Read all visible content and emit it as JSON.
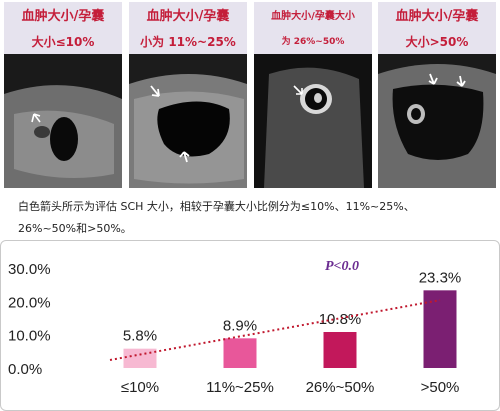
{
  "panels": [
    {
      "title": "血肿大小/孕囊",
      "subtitle": "大小≤10%"
    },
    {
      "title": "血肿大小/孕囊",
      "subtitle": "小为 11%~25%"
    },
    {
      "title": "血肿大小/孕囊大小",
      "subtitle": "为 26%~50%"
    },
    {
      "title": "血肿大小/孕囊",
      "subtitle": "大小>50%"
    }
  ],
  "caption": {
    "line1": "白色箭头所示为评估 SCH 大小，相较于孕囊大小比例分为≤10%、11%~25%、",
    "line2": "26%~50%和>50%。"
  },
  "chart_data": {
    "type": "bar",
    "categories": [
      "≤10%",
      "11%~25%",
      "26%~50%",
      ">50%"
    ],
    "values": [
      5.8,
      8.9,
      10.8,
      23.3
    ],
    "value_labels": [
      "5.8%",
      "8.9%",
      "10.8%",
      "23.3%"
    ],
    "yticks": [
      "0.0%",
      "10.0%",
      "20.0%",
      "30.0%"
    ],
    "ylim": [
      0,
      30
    ],
    "annotation": "P<0.0",
    "trendline": true,
    "grid": false,
    "colors": [
      "#f7b9d2",
      "#e8579a",
      "#c2185b",
      "#7b1f72"
    ],
    "trend_color": "#c0182e",
    "annotation_color": "#6b2c91"
  }
}
